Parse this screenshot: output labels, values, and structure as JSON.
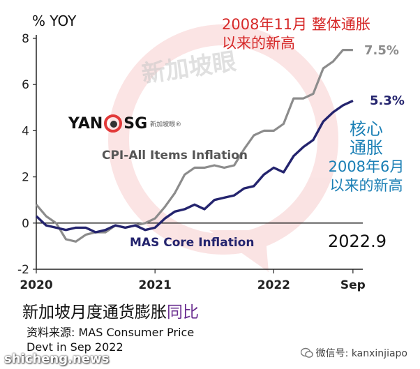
{
  "chart_data": {
    "type": "line",
    "unit_label": "% YOY",
    "ylim": [
      -2,
      8
    ],
    "y_ticks": [
      -2,
      0,
      2,
      4,
      6,
      8
    ],
    "x_range": [
      2020.0,
      2022.75
    ],
    "x_ticks": [
      {
        "x": 2020.0,
        "label": "2020"
      },
      {
        "x": 2021.0,
        "label": "2021"
      },
      {
        "x": 2022.0,
        "label": "2022"
      },
      {
        "x": 2022.667,
        "label": "Sep"
      }
    ],
    "series": [
      {
        "name": "CPI-All Items Inflation",
        "color": "#8c8c8c",
        "end_label": "7.5%",
        "x": [
          2020.0,
          2020.083,
          2020.167,
          2020.25,
          2020.333,
          2020.417,
          2020.5,
          2020.583,
          2020.667,
          2020.75,
          2020.833,
          2020.917,
          2021.0,
          2021.083,
          2021.167,
          2021.25,
          2021.333,
          2021.417,
          2021.5,
          2021.583,
          2021.667,
          2021.75,
          2021.833,
          2021.917,
          2022.0,
          2022.083,
          2022.167,
          2022.25,
          2022.333,
          2022.417,
          2022.5,
          2022.583,
          2022.667
        ],
        "values": [
          0.8,
          0.3,
          0.0,
          -0.7,
          -0.8,
          -0.5,
          -0.4,
          -0.4,
          -0.1,
          -0.2,
          -0.1,
          0.0,
          0.2,
          0.7,
          1.3,
          2.1,
          2.4,
          2.4,
          2.5,
          2.4,
          2.5,
          3.2,
          3.8,
          4.0,
          4.0,
          4.3,
          5.4,
          5.4,
          5.6,
          6.7,
          7.0,
          7.5,
          7.5
        ]
      },
      {
        "name": "MAS Core Inflation",
        "color": "#24246e",
        "end_label": "5.3%",
        "x": [
          2020.0,
          2020.083,
          2020.167,
          2020.25,
          2020.333,
          2020.417,
          2020.5,
          2020.583,
          2020.667,
          2020.75,
          2020.833,
          2020.917,
          2021.0,
          2021.083,
          2021.167,
          2021.25,
          2021.333,
          2021.417,
          2021.5,
          2021.583,
          2021.667,
          2021.75,
          2021.833,
          2021.917,
          2022.0,
          2022.083,
          2022.167,
          2022.25,
          2022.333,
          2022.417,
          2022.5,
          2022.583,
          2022.667
        ],
        "values": [
          0.3,
          -0.1,
          -0.2,
          -0.3,
          -0.2,
          -0.2,
          -0.4,
          -0.3,
          -0.1,
          -0.2,
          -0.1,
          -0.3,
          -0.2,
          0.2,
          0.5,
          0.6,
          0.8,
          0.6,
          1.0,
          1.1,
          1.2,
          1.5,
          1.6,
          2.1,
          2.4,
          2.2,
          2.9,
          3.3,
          3.6,
          4.4,
          4.8,
          5.1,
          5.3
        ]
      }
    ],
    "annotations": {
      "headline_red": [
        "2008年11月  整体通胀",
        "以来的新高"
      ],
      "core_blue": [
        "核心",
        "通胀",
        "2008年6月",
        "以来的新高"
      ],
      "date_label": "2022.9"
    }
  },
  "subtitle": {
    "main": "新加坡月度通货膨胀",
    "accent": "同比"
  },
  "source_lines": [
    "资料来源:  MAS Consumer Price",
    "Devt in Sep 2022"
  ],
  "logo": {
    "left": "YAN",
    "right": "SG",
    "small": "新加坡眼®"
  },
  "bg_watermark": "新加坡眼",
  "site_watermark": "shicheng.news",
  "wechat": "微信号: kanxinjiapo",
  "colors": {
    "red": "#d62828",
    "blue": "#1a7fb5",
    "purple": "#6b2f90"
  }
}
